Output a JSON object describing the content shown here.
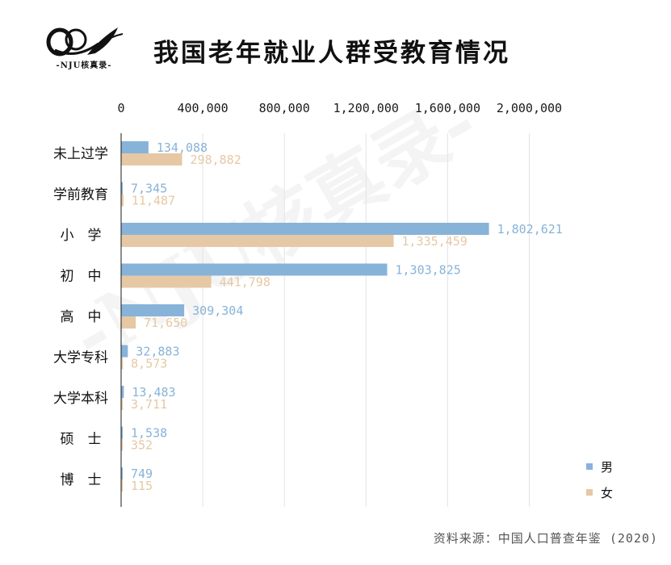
{
  "header": {
    "logo_text": "-NJU核真录-",
    "title": "我国老年就业人群受教育情况"
  },
  "watermark": "-NJU核真录-",
  "source": "资料来源：中国人口普查年鉴 (2020)",
  "colors": {
    "male": "#87b3d9",
    "female": "#e6c8a4",
    "grid": "#e3e3e3",
    "axis": "#1a1a1a"
  },
  "chart_data": {
    "type": "bar",
    "orientation": "horizontal",
    "title": "我国老年就业人群受教育情况",
    "categories": [
      "未上过学",
      "学前教育",
      "小　学",
      "初　中",
      "高　中",
      "大学专科",
      "大学本科",
      "硕　士",
      "博　士"
    ],
    "series": [
      {
        "name": "男",
        "color": "#87b3d9",
        "values": [
          134088,
          7345,
          1802621,
          1303825,
          309304,
          32883,
          13483,
          1538,
          749
        ]
      },
      {
        "name": "女",
        "color": "#e6c8a4",
        "values": [
          298882,
          11487,
          1335459,
          441798,
          71650,
          8573,
          3711,
          352,
          115
        ]
      }
    ],
    "xlim": [
      0,
      2200000
    ],
    "xticks": [
      0,
      400000,
      800000,
      1200000,
      1600000,
      2000000
    ],
    "xtick_labels": [
      "0",
      "400,000",
      "800,000",
      "1,200,000",
      "1,600,000",
      "2,000,000"
    ],
    "grid": true,
    "legend_position": "bottom-right"
  }
}
